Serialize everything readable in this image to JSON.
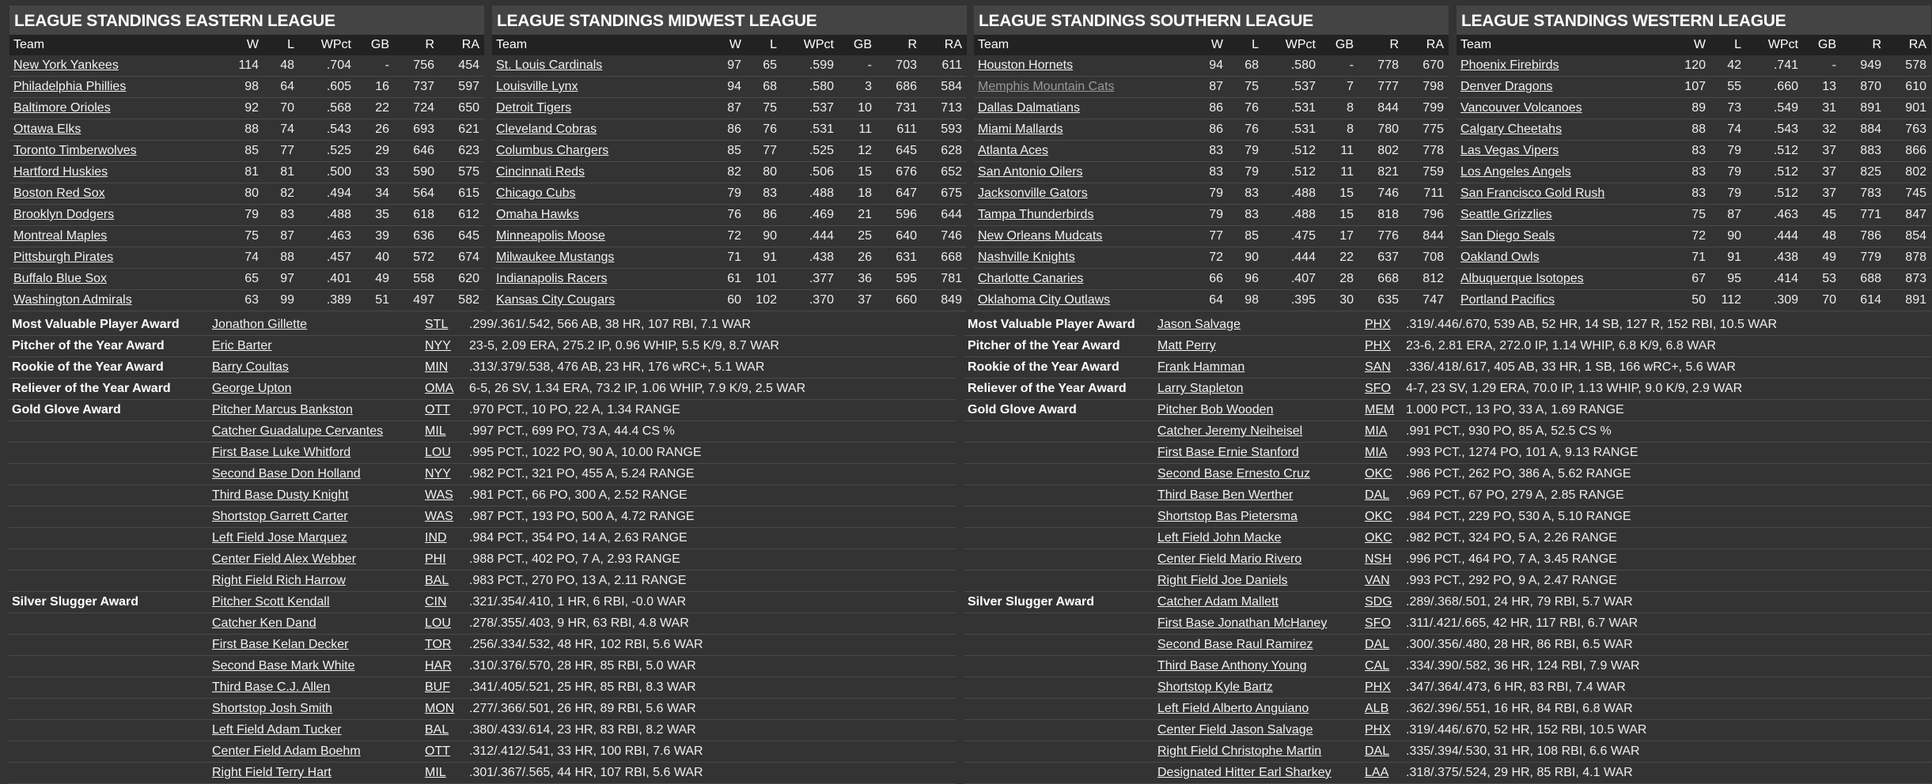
{
  "standings": [
    {
      "title": "LEAGUE STANDINGS EASTERN LEAGUE",
      "headers": [
        "Team",
        "W",
        "L",
        "WPct",
        "GB",
        "R",
        "RA"
      ],
      "rows": [
        {
          "team": "New York Yankees",
          "w": "114",
          "l": "48",
          "wpct": ".704",
          "gb": "-",
          "r": "756",
          "ra": "454"
        },
        {
          "team": "Philadelphia Phillies",
          "w": "98",
          "l": "64",
          "wpct": ".605",
          "gb": "16",
          "r": "737",
          "ra": "597"
        },
        {
          "team": "Baltimore Orioles",
          "w": "92",
          "l": "70",
          "wpct": ".568",
          "gb": "22",
          "r": "724",
          "ra": "650"
        },
        {
          "team": "Ottawa Elks",
          "w": "88",
          "l": "74",
          "wpct": ".543",
          "gb": "26",
          "r": "693",
          "ra": "621"
        },
        {
          "team": "Toronto Timberwolves",
          "w": "85",
          "l": "77",
          "wpct": ".525",
          "gb": "29",
          "r": "646",
          "ra": "623"
        },
        {
          "team": "Hartford Huskies",
          "w": "81",
          "l": "81",
          "wpct": ".500",
          "gb": "33",
          "r": "590",
          "ra": "575"
        },
        {
          "team": "Boston Red Sox",
          "w": "80",
          "l": "82",
          "wpct": ".494",
          "gb": "34",
          "r": "564",
          "ra": "615"
        },
        {
          "team": "Brooklyn Dodgers",
          "w": "79",
          "l": "83",
          "wpct": ".488",
          "gb": "35",
          "r": "618",
          "ra": "612"
        },
        {
          "team": "Montreal Maples",
          "w": "75",
          "l": "87",
          "wpct": ".463",
          "gb": "39",
          "r": "636",
          "ra": "645"
        },
        {
          "team": "Pittsburgh Pirates",
          "w": "74",
          "l": "88",
          "wpct": ".457",
          "gb": "40",
          "r": "572",
          "ra": "674"
        },
        {
          "team": "Buffalo Blue Sox",
          "w": "65",
          "l": "97",
          "wpct": ".401",
          "gb": "49",
          "r": "558",
          "ra": "620"
        },
        {
          "team": "Washington Admirals",
          "w": "63",
          "l": "99",
          "wpct": ".389",
          "gb": "51",
          "r": "497",
          "ra": "582"
        }
      ]
    },
    {
      "title": "LEAGUE STANDINGS MIDWEST LEAGUE",
      "headers": [
        "Team",
        "W",
        "L",
        "WPct",
        "GB",
        "R",
        "RA"
      ],
      "rows": [
        {
          "team": "St. Louis Cardinals",
          "w": "97",
          "l": "65",
          "wpct": ".599",
          "gb": "-",
          "r": "703",
          "ra": "611"
        },
        {
          "team": "Louisville Lynx",
          "w": "94",
          "l": "68",
          "wpct": ".580",
          "gb": "3",
          "r": "686",
          "ra": "584"
        },
        {
          "team": "Detroit Tigers",
          "w": "87",
          "l": "75",
          "wpct": ".537",
          "gb": "10",
          "r": "731",
          "ra": "713"
        },
        {
          "team": "Cleveland Cobras",
          "w": "86",
          "l": "76",
          "wpct": ".531",
          "gb": "11",
          "r": "611",
          "ra": "593"
        },
        {
          "team": "Columbus Chargers",
          "w": "85",
          "l": "77",
          "wpct": ".525",
          "gb": "12",
          "r": "645",
          "ra": "628"
        },
        {
          "team": "Cincinnati Reds",
          "w": "82",
          "l": "80",
          "wpct": ".506",
          "gb": "15",
          "r": "676",
          "ra": "652"
        },
        {
          "team": "Chicago Cubs",
          "w": "79",
          "l": "83",
          "wpct": ".488",
          "gb": "18",
          "r": "647",
          "ra": "675"
        },
        {
          "team": "Omaha Hawks",
          "w": "76",
          "l": "86",
          "wpct": ".469",
          "gb": "21",
          "r": "596",
          "ra": "644"
        },
        {
          "team": "Minneapolis Moose",
          "w": "72",
          "l": "90",
          "wpct": ".444",
          "gb": "25",
          "r": "640",
          "ra": "746"
        },
        {
          "team": "Milwaukee Mustangs",
          "w": "71",
          "l": "91",
          "wpct": ".438",
          "gb": "26",
          "r": "631",
          "ra": "668"
        },
        {
          "team": "Indianapolis Racers",
          "w": "61",
          "l": "101",
          "wpct": ".377",
          "gb": "36",
          "r": "595",
          "ra": "781"
        },
        {
          "team": "Kansas City Cougars",
          "w": "60",
          "l": "102",
          "wpct": ".370",
          "gb": "37",
          "r": "660",
          "ra": "849"
        }
      ]
    },
    {
      "title": "LEAGUE STANDINGS SOUTHERN LEAGUE",
      "headers": [
        "Team",
        "W",
        "L",
        "WPct",
        "GB",
        "R",
        "RA"
      ],
      "rows": [
        {
          "team": "Houston Hornets",
          "w": "94",
          "l": "68",
          "wpct": ".580",
          "gb": "-",
          "r": "778",
          "ra": "670"
        },
        {
          "team": "Memphis Mountain Cats",
          "w": "87",
          "l": "75",
          "wpct": ".537",
          "gb": "7",
          "r": "777",
          "ra": "798",
          "visited": true
        },
        {
          "team": "Dallas Dalmatians",
          "w": "86",
          "l": "76",
          "wpct": ".531",
          "gb": "8",
          "r": "844",
          "ra": "799"
        },
        {
          "team": "Miami Mallards",
          "w": "86",
          "l": "76",
          "wpct": ".531",
          "gb": "8",
          "r": "780",
          "ra": "775"
        },
        {
          "team": "Atlanta Aces",
          "w": "83",
          "l": "79",
          "wpct": ".512",
          "gb": "11",
          "r": "802",
          "ra": "778"
        },
        {
          "team": "San Antonio Oilers",
          "w": "83",
          "l": "79",
          "wpct": ".512",
          "gb": "11",
          "r": "821",
          "ra": "759"
        },
        {
          "team": "Jacksonville Gators",
          "w": "79",
          "l": "83",
          "wpct": ".488",
          "gb": "15",
          "r": "746",
          "ra": "711"
        },
        {
          "team": "Tampa Thunderbirds",
          "w": "79",
          "l": "83",
          "wpct": ".488",
          "gb": "15",
          "r": "818",
          "ra": "796"
        },
        {
          "team": "New Orleans Mudcats",
          "w": "77",
          "l": "85",
          "wpct": ".475",
          "gb": "17",
          "r": "776",
          "ra": "844"
        },
        {
          "team": "Nashville Knights",
          "w": "72",
          "l": "90",
          "wpct": ".444",
          "gb": "22",
          "r": "637",
          "ra": "708"
        },
        {
          "team": "Charlotte Canaries",
          "w": "66",
          "l": "96",
          "wpct": ".407",
          "gb": "28",
          "r": "668",
          "ra": "812"
        },
        {
          "team": "Oklahoma City Outlaws",
          "w": "64",
          "l": "98",
          "wpct": ".395",
          "gb": "30",
          "r": "635",
          "ra": "747"
        }
      ]
    },
    {
      "title": "LEAGUE STANDINGS WESTERN LEAGUE",
      "headers": [
        "Team",
        "W",
        "L",
        "WPct",
        "GB",
        "R",
        "RA"
      ],
      "rows": [
        {
          "team": "Phoenix Firebirds",
          "w": "120",
          "l": "42",
          "wpct": ".741",
          "gb": "-",
          "r": "949",
          "ra": "578"
        },
        {
          "team": "Denver Dragons",
          "w": "107",
          "l": "55",
          "wpct": ".660",
          "gb": "13",
          "r": "870",
          "ra": "610"
        },
        {
          "team": "Vancouver Volcanoes",
          "w": "89",
          "l": "73",
          "wpct": ".549",
          "gb": "31",
          "r": "891",
          "ra": "901"
        },
        {
          "team": "Calgary Cheetahs",
          "w": "88",
          "l": "74",
          "wpct": ".543",
          "gb": "32",
          "r": "884",
          "ra": "763"
        },
        {
          "team": "Las Vegas Vipers",
          "w": "83",
          "l": "79",
          "wpct": ".512",
          "gb": "37",
          "r": "883",
          "ra": "866"
        },
        {
          "team": "Los Angeles Angels",
          "w": "83",
          "l": "79",
          "wpct": ".512",
          "gb": "37",
          "r": "825",
          "ra": "802"
        },
        {
          "team": "San Francisco Gold Rush",
          "w": "83",
          "l": "79",
          "wpct": ".512",
          "gb": "37",
          "r": "783",
          "ra": "745"
        },
        {
          "team": "Seattle Grizzlies",
          "w": "75",
          "l": "87",
          "wpct": ".463",
          "gb": "45",
          "r": "771",
          "ra": "847"
        },
        {
          "team": "San Diego Seals",
          "w": "72",
          "l": "90",
          "wpct": ".444",
          "gb": "48",
          "r": "786",
          "ra": "854"
        },
        {
          "team": "Oakland Owls",
          "w": "71",
          "l": "91",
          "wpct": ".438",
          "gb": "49",
          "r": "779",
          "ra": "878"
        },
        {
          "team": "Albuquerque Isotopes",
          "w": "67",
          "l": "95",
          "wpct": ".414",
          "gb": "53",
          "r": "688",
          "ra": "873"
        },
        {
          "team": "Portland Pacifics",
          "w": "50",
          "l": "112",
          "wpct": ".309",
          "gb": "70",
          "r": "614",
          "ra": "891"
        }
      ]
    }
  ],
  "awards": [
    [
      {
        "award": "Most Valuable Player Award",
        "name": "Jonathon Gillette",
        "team": "STL",
        "stats": ".299/.361/.542, 566 AB, 38 HR, 107 RBI, 7.1 WAR"
      },
      {
        "award": "Pitcher of the Year Award",
        "name": "Eric Barter",
        "team": "NYY",
        "stats": "23-5, 2.09 ERA, 275.2 IP, 0.96 WHIP, 5.5 K/9, 8.7 WAR"
      },
      {
        "award": "Rookie of the Year Award",
        "name": "Barry Coultas",
        "team": "MIN",
        "stats": ".313/.379/.538, 476 AB, 23 HR, 176 wRC+, 5.1 WAR"
      },
      {
        "award": "Reliever of the Year Award",
        "name": "George Upton",
        "team": "OMA",
        "stats": "6-5, 26 SV, 1.34 ERA, 73.2 IP, 1.06 WHIP, 7.9 K/9, 2.5 WAR"
      },
      {
        "award": "Gold Glove Award",
        "name": "Pitcher Marcus Bankston",
        "team": "OTT",
        "stats": ".970 PCT., 10 PO, 22 A, 1.34 RANGE"
      },
      {
        "award": "",
        "name": "Catcher Guadalupe Cervantes",
        "team": "MIL",
        "stats": ".997 PCT., 699 PO, 73 A, 44.4 CS %"
      },
      {
        "award": "",
        "name": "First Base Luke Whitford",
        "team": "LOU",
        "stats": ".995 PCT., 1022 PO, 90 A, 10.00 RANGE"
      },
      {
        "award": "",
        "name": "Second Base Don Holland",
        "team": "NYY",
        "stats": ".982 PCT., 321 PO, 455 A, 5.24 RANGE"
      },
      {
        "award": "",
        "name": "Third Base Dusty Knight",
        "team": "WAS",
        "stats": ".981 PCT., 66 PO, 300 A, 2.52 RANGE"
      },
      {
        "award": "",
        "name": "Shortstop Garrett Carter",
        "team": "WAS",
        "stats": ".987 PCT., 193 PO, 500 A, 4.72 RANGE"
      },
      {
        "award": "",
        "name": "Left Field Jose Marquez",
        "team": "IND",
        "stats": ".984 PCT., 354 PO, 14 A, 2.63 RANGE"
      },
      {
        "award": "",
        "name": "Center Field Alex Webber",
        "team": "PHI",
        "stats": ".988 PCT., 402 PO, 7 A, 2.93 RANGE"
      },
      {
        "award": "",
        "name": "Right Field Rich Harrow",
        "team": "BAL",
        "stats": ".983 PCT., 270 PO, 13 A, 2.11 RANGE"
      },
      {
        "award": "Silver Slugger Award",
        "name": "Pitcher Scott Kendall",
        "team": "CIN",
        "stats": ".321/.354/.410, 1 HR, 6 RBI, -0.0 WAR"
      },
      {
        "award": "",
        "name": "Catcher Ken Dand",
        "team": "LOU",
        "stats": ".278/.355/.403, 9 HR, 63 RBI, 4.8 WAR"
      },
      {
        "award": "",
        "name": "First Base Kelan Decker",
        "team": "TOR",
        "stats": ".256/.334/.532, 48 HR, 102 RBI, 5.6 WAR"
      },
      {
        "award": "",
        "name": "Second Base Mark White",
        "team": "HAR",
        "stats": ".310/.376/.570, 28 HR, 85 RBI, 5.0 WAR"
      },
      {
        "award": "",
        "name": "Third Base C.J. Allen",
        "team": "BUF",
        "stats": ".341/.405/.521, 25 HR, 85 RBI, 8.3 WAR"
      },
      {
        "award": "",
        "name": "Shortstop Josh Smith",
        "team": "MON",
        "stats": ".277/.366/.501, 26 HR, 89 RBI, 5.6 WAR"
      },
      {
        "award": "",
        "name": "Left Field Adam Tucker",
        "team": "BAL",
        "stats": ".380/.433/.614, 23 HR, 83 RBI, 8.2 WAR"
      },
      {
        "award": "",
        "name": "Center Field Adam Boehm",
        "team": "OTT",
        "stats": ".312/.412/.541, 33 HR, 100 RBI, 7.6 WAR"
      },
      {
        "award": "",
        "name": "Right Field Terry Hart",
        "team": "MIL",
        "stats": ".301/.367/.565, 44 HR, 107 RBI, 5.6 WAR"
      }
    ],
    [
      {
        "award": "Most Valuable Player Award",
        "name": "Jason Salvage",
        "team": "PHX",
        "stats": ".319/.446/.670, 539 AB, 52 HR, 14 SB, 127 R, 152 RBI, 10.5 WAR"
      },
      {
        "award": "Pitcher of the Year Award",
        "name": "Matt Perry",
        "team": "PHX",
        "stats": "23-6, 2.81 ERA, 272.0 IP, 1.14 WHIP, 6.8 K/9, 6.8 WAR"
      },
      {
        "award": "Rookie of the Year Award",
        "name": "Frank Hamman",
        "team": "SAN",
        "stats": ".336/.418/.617, 405 AB, 33 HR, 1 SB, 166 wRC+, 5.6 WAR"
      },
      {
        "award": "Reliever of the Year Award",
        "name": "Larry Stapleton",
        "team": "SFO",
        "stats": "4-7, 23 SV, 1.29 ERA, 70.0 IP, 1.13 WHIP, 9.0 K/9, 2.9 WAR"
      },
      {
        "award": "Gold Glove Award",
        "name": "Pitcher Bob Wooden",
        "team": "MEM",
        "stats": "1.000 PCT., 13 PO, 33 A, 1.69 RANGE"
      },
      {
        "award": "",
        "name": "Catcher Jeremy Neiheisel",
        "team": "MIA",
        "stats": ".991 PCT., 930 PO, 85 A, 52.5 CS %"
      },
      {
        "award": "",
        "name": "First Base Ernie Stanford",
        "team": "MIA",
        "stats": ".993 PCT., 1274 PO, 101 A, 9.13 RANGE"
      },
      {
        "award": "",
        "name": "Second Base Ernesto Cruz",
        "team": "OKC",
        "stats": ".986 PCT., 262 PO, 386 A, 5.62 RANGE"
      },
      {
        "award": "",
        "name": "Third Base Ben Werther",
        "team": "DAL",
        "stats": ".969 PCT., 67 PO, 279 A, 2.85 RANGE"
      },
      {
        "award": "",
        "name": "Shortstop Bas Pietersma",
        "team": "OKC",
        "stats": ".984 PCT., 229 PO, 530 A, 5.10 RANGE"
      },
      {
        "award": "",
        "name": "Left Field John Macke",
        "team": "OKC",
        "stats": ".982 PCT., 324 PO, 5 A, 2.26 RANGE"
      },
      {
        "award": "",
        "name": "Center Field Mario Rivero",
        "team": "NSH",
        "stats": ".996 PCT., 464 PO, 7 A, 3.45 RANGE"
      },
      {
        "award": "",
        "name": "Right Field Joe Daniels",
        "team": "VAN",
        "stats": ".993 PCT., 292 PO, 9 A, 2.47 RANGE"
      },
      {
        "award": "Silver Slugger Award",
        "name": "Catcher Adam Mallett",
        "team": "SDG",
        "stats": ".289/.368/.501, 24 HR, 79 RBI, 5.7 WAR"
      },
      {
        "award": "",
        "name": "First Base Jonathan McHaney",
        "team": "SFO",
        "stats": ".311/.421/.665, 42 HR, 117 RBI, 6.7 WAR"
      },
      {
        "award": "",
        "name": "Second Base Raul Ramirez",
        "team": "DAL",
        "stats": ".300/.356/.480, 28 HR, 86 RBI, 6.5 WAR"
      },
      {
        "award": "",
        "name": "Third Base Anthony Young",
        "team": "CAL",
        "stats": ".334/.390/.582, 36 HR, 124 RBI, 7.9 WAR"
      },
      {
        "award": "",
        "name": "Shortstop Kyle Bartz",
        "team": "PHX",
        "stats": ".347/.364/.473, 6 HR, 83 RBI, 7.4 WAR"
      },
      {
        "award": "",
        "name": "Left Field Alberto Anguiano",
        "team": "ALB",
        "stats": ".362/.396/.551, 16 HR, 84 RBI, 6.8 WAR"
      },
      {
        "award": "",
        "name": "Center Field Jason Salvage",
        "team": "PHX",
        "stats": ".319/.446/.670, 52 HR, 152 RBI, 10.5 WAR"
      },
      {
        "award": "",
        "name": "Right Field Christophe Martin",
        "team": "DAL",
        "stats": ".335/.394/.530, 31 HR, 108 RBI, 6.6 WAR"
      },
      {
        "award": "",
        "name": "Designated Hitter Earl Sharkey",
        "team": "LAA",
        "stats": ".318/.375/.524, 29 HR, 85 RBI, 4.1 WAR"
      }
    ]
  ],
  "colors": {
    "background": "#333333",
    "title_bar": "#444444",
    "header_row": "#222222",
    "visited_link": "#9a9a9a"
  }
}
